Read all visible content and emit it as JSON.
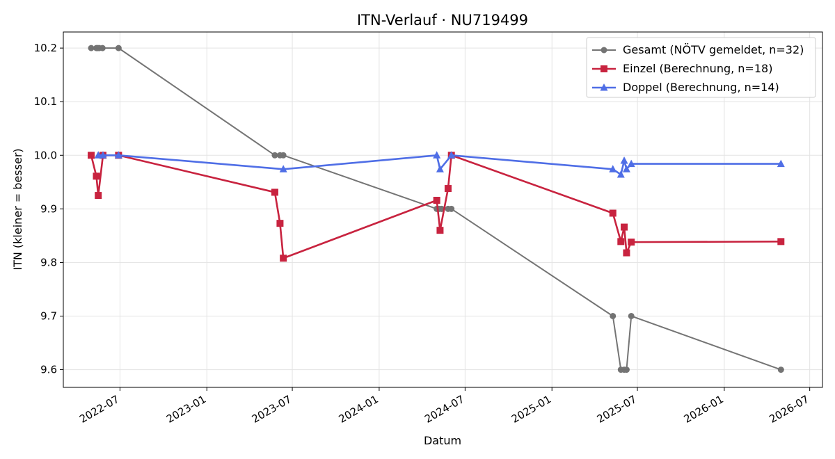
{
  "chart_data": {
    "type": "line",
    "title": "ITN-Verlauf · NU719499",
    "xlabel": "Datum",
    "ylabel": "ITN  (kleiner = besser)",
    "x_type": "date",
    "xlim": [
      "2022-03-03",
      "2026-07-28"
    ],
    "ylim": [
      9.567,
      10.23
    ],
    "x_ticks": [
      "2022-07",
      "2023-01",
      "2023-07",
      "2024-01",
      "2024-07",
      "2025-01",
      "2025-07",
      "2026-01",
      "2026-07"
    ],
    "y_ticks": [
      9.6,
      9.7,
      9.8,
      9.9,
      10.0,
      10.1,
      10.2
    ],
    "grid": true,
    "legend_position": "top-right",
    "series": [
      {
        "name": "Gesamt (NÖTV gemeldet, n=32)",
        "color": "#404040",
        "marker": "circle",
        "points": [
          [
            "2022-05-01",
            10.2
          ],
          [
            "2022-05-12",
            10.2
          ],
          [
            "2022-05-15",
            10.2
          ],
          [
            "2022-05-18",
            10.2
          ],
          [
            "2022-05-25",
            10.2
          ],
          [
            "2022-06-28",
            10.2
          ],
          [
            "2023-05-25",
            10.0
          ],
          [
            "2023-06-05",
            10.0
          ],
          [
            "2023-06-12",
            10.0
          ],
          [
            "2024-05-02",
            9.9
          ],
          [
            "2024-05-07",
            9.9
          ],
          [
            "2024-05-12",
            9.9
          ],
          [
            "2024-05-26",
            9.9
          ],
          [
            "2024-06-02",
            9.9
          ],
          [
            "2025-05-10",
            9.7
          ],
          [
            "2025-05-27",
            9.6
          ],
          [
            "2025-06-03",
            9.6
          ],
          [
            "2025-06-08",
            9.6
          ],
          [
            "2025-06-18",
            9.7
          ],
          [
            "2026-05-01",
            9.6
          ]
        ]
      },
      {
        "name": "Einzel (Berechnung, n=18)",
        "color": "#c8233f",
        "marker": "square",
        "points": [
          [
            "2022-05-01",
            10.0
          ],
          [
            "2022-05-12",
            9.961
          ],
          [
            "2022-05-16",
            9.925
          ],
          [
            "2022-05-26",
            10.0
          ],
          [
            "2022-06-28",
            10.0
          ],
          [
            "2023-05-25",
            9.931
          ],
          [
            "2023-06-05",
            9.873
          ],
          [
            "2023-06-12",
            9.808
          ],
          [
            "2024-05-02",
            9.916
          ],
          [
            "2024-05-09",
            9.86
          ],
          [
            "2024-05-26",
            9.938
          ],
          [
            "2024-06-02",
            10.0
          ],
          [
            "2025-05-10",
            9.892
          ],
          [
            "2025-05-27",
            9.839
          ],
          [
            "2025-06-03",
            9.866
          ],
          [
            "2025-06-08",
            9.818
          ],
          [
            "2025-06-18",
            9.838
          ],
          [
            "2026-05-01",
            9.839
          ]
        ]
      },
      {
        "name": "Doppel (Berechnung, n=14)",
        "color": "#4f6ee6",
        "marker": "triangle",
        "points": [
          [
            "2022-05-16",
            10.0
          ],
          [
            "2022-05-26",
            10.0
          ],
          [
            "2022-06-28",
            10.0
          ],
          [
            "2023-06-12",
            9.974
          ],
          [
            "2024-05-02",
            10.0
          ],
          [
            "2024-05-09",
            9.974
          ],
          [
            "2024-06-02",
            10.0
          ],
          [
            "2025-05-10",
            9.974
          ],
          [
            "2025-05-27",
            9.964
          ],
          [
            "2025-06-03",
            9.99
          ],
          [
            "2025-06-08",
            9.974
          ],
          [
            "2025-06-18",
            9.984
          ],
          [
            "2026-05-01",
            9.984
          ]
        ]
      }
    ]
  }
}
